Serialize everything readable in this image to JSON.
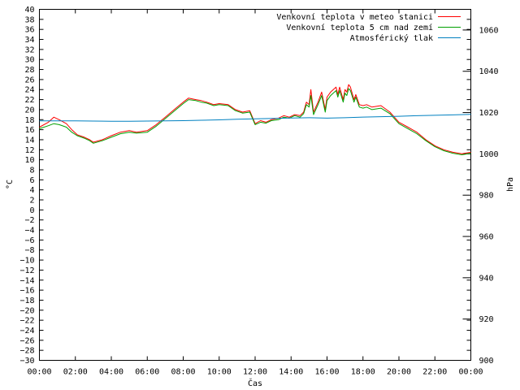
{
  "chart_data": {
    "type": "line",
    "title": "",
    "xlabel": "Čas",
    "ylabel": "°C",
    "y2label": "hPa",
    "x_ticks": [
      "00:00",
      "02:00",
      "04:00",
      "06:00",
      "08:00",
      "10:00",
      "12:00",
      "14:00",
      "16:00",
      "18:00",
      "20:00",
      "22:00",
      "00:00"
    ],
    "x_range_hours": [
      0,
      24
    ],
    "ylim": [
      -30,
      40
    ],
    "y_step": 2,
    "y2lim": [
      900,
      1070
    ],
    "y2_ticks": [
      900,
      920,
      940,
      960,
      980,
      1000,
      1020,
      1040,
      1060
    ],
    "grid": false,
    "legend": "top-right",
    "series": [
      {
        "name": "Venkovní teplota v meteo stanici",
        "color": "#ff0000",
        "axis": "y",
        "x": [
          0,
          0.5,
          0.8,
          1.1,
          1.5,
          1.8,
          2.1,
          2.5,
          2.8,
          3.0,
          3.5,
          4.0,
          4.5,
          5.0,
          5.4,
          6.0,
          6.5,
          7.0,
          7.5,
          8.0,
          8.3,
          8.7,
          9.0,
          9.3,
          9.7,
          10.0,
          10.5,
          10.9,
          11.3,
          11.7,
          12.0,
          12.3,
          12.6,
          12.9,
          13.3,
          13.6,
          13.9,
          14.2,
          14.5,
          14.7,
          14.85,
          15.0,
          15.1,
          15.25,
          15.5,
          15.7,
          15.9,
          16.0,
          16.2,
          16.5,
          16.6,
          16.7,
          16.9,
          17.0,
          17.1,
          17.2,
          17.3,
          17.5,
          17.6,
          17.8,
          18.0,
          18.2,
          18.5,
          19.0,
          19.5,
          20.0,
          20.5,
          21.0,
          21.5,
          22.0,
          22.5,
          23.0,
          23.5,
          24.0
        ],
        "values": [
          16.5,
          17.5,
          18.5,
          18.0,
          17.2,
          16.0,
          15.0,
          14.5,
          14.0,
          13.5,
          14.0,
          14.8,
          15.5,
          15.8,
          15.5,
          15.8,
          17.0,
          18.5,
          20.0,
          21.5,
          22.3,
          22.0,
          21.8,
          21.5,
          21.0,
          21.2,
          21.0,
          20.0,
          19.5,
          19.8,
          17.2,
          17.8,
          17.5,
          18.0,
          18.3,
          18.8,
          18.5,
          19.0,
          18.8,
          19.5,
          21.5,
          21.0,
          24.0,
          19.5,
          21.5,
          23.5,
          20.0,
          22.5,
          23.5,
          24.5,
          23.0,
          24.5,
          22.0,
          24.0,
          23.5,
          25.0,
          24.5,
          22.0,
          23.0,
          21.0,
          20.8,
          21.0,
          20.5,
          20.8,
          19.5,
          17.5,
          16.5,
          15.5,
          14.0,
          12.8,
          12.0,
          11.5,
          11.2,
          11.5
        ]
      },
      {
        "name": "Venkovní teplota 5 cm nad zemí",
        "color": "#00a000",
        "axis": "y",
        "x": [
          0,
          0.5,
          0.8,
          1.1,
          1.5,
          1.8,
          2.1,
          2.5,
          2.8,
          3.0,
          3.5,
          4.0,
          4.5,
          5.0,
          5.4,
          6.0,
          6.5,
          7.0,
          7.5,
          8.0,
          8.3,
          8.7,
          9.0,
          9.3,
          9.7,
          10.0,
          10.5,
          10.9,
          11.3,
          11.7,
          12.0,
          12.3,
          12.6,
          12.9,
          13.3,
          13.6,
          13.9,
          14.2,
          14.5,
          14.7,
          14.85,
          15.0,
          15.1,
          15.25,
          15.5,
          15.7,
          15.9,
          16.0,
          16.2,
          16.5,
          16.6,
          16.7,
          16.9,
          17.0,
          17.1,
          17.2,
          17.3,
          17.5,
          17.6,
          17.8,
          18.0,
          18.2,
          18.5,
          19.0,
          19.5,
          20.0,
          20.5,
          21.0,
          21.5,
          22.0,
          22.5,
          23.0,
          23.5,
          24.0
        ],
        "values": [
          16.2,
          16.8,
          17.2,
          17.0,
          16.5,
          15.5,
          14.8,
          14.3,
          13.8,
          13.3,
          13.8,
          14.5,
          15.2,
          15.5,
          15.3,
          15.5,
          16.7,
          18.2,
          19.7,
          21.2,
          22.0,
          21.8,
          21.5,
          21.3,
          20.8,
          21.0,
          20.8,
          19.8,
          19.3,
          19.5,
          17.0,
          17.5,
          17.3,
          17.8,
          18.0,
          18.5,
          18.3,
          18.8,
          18.5,
          19.2,
          21.0,
          20.5,
          22.8,
          19.0,
          21.0,
          22.8,
          19.5,
          21.8,
          22.8,
          23.8,
          22.5,
          23.8,
          21.5,
          23.3,
          22.8,
          24.2,
          23.8,
          21.5,
          22.5,
          20.5,
          20.3,
          20.5,
          20.0,
          20.3,
          19.2,
          17.2,
          16.2,
          15.2,
          13.8,
          12.6,
          11.8,
          11.3,
          11.0,
          11.3
        ]
      },
      {
        "name": "Atmosférický tlak",
        "color": "#0080c0",
        "axis": "y2",
        "x": [
          0,
          1,
          2,
          3,
          4,
          5,
          6,
          7,
          8,
          9,
          10,
          11,
          12,
          13,
          14,
          15,
          16,
          17,
          18,
          19,
          20,
          21,
          22,
          23,
          24
        ],
        "values": [
          1016.0,
          1016.0,
          1016.0,
          1015.9,
          1015.8,
          1015.8,
          1015.9,
          1016.0,
          1016.1,
          1016.3,
          1016.5,
          1016.8,
          1017.0,
          1017.2,
          1017.4,
          1017.5,
          1017.3,
          1017.5,
          1017.8,
          1018.0,
          1018.2,
          1018.5,
          1018.7,
          1018.9,
          1019.1
        ]
      }
    ]
  }
}
